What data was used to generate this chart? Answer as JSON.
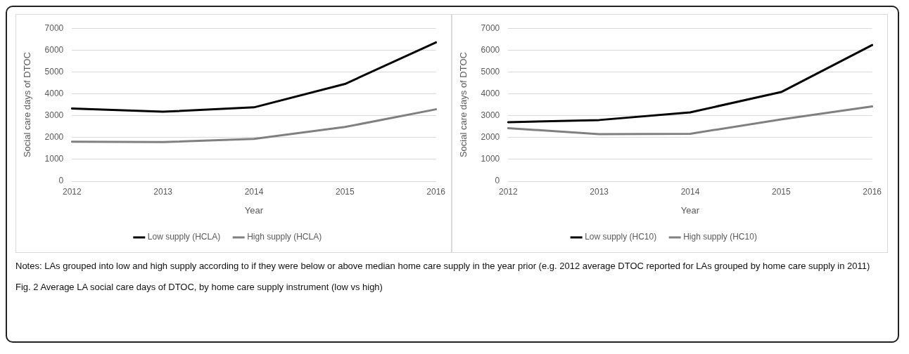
{
  "chart_data": [
    {
      "type": "line",
      "xlabel": "Year",
      "ylabel": "Social care days of DTOC",
      "categories": [
        "2012",
        "2013",
        "2014",
        "2015",
        "2016"
      ],
      "series": [
        {
          "name": "Low supply (HCLA)",
          "color": "#000000",
          "values": [
            3330,
            3180,
            3380,
            4450,
            6350
          ]
        },
        {
          "name": "High supply (HCLA)",
          "color": "#808080",
          "values": [
            1810,
            1790,
            1940,
            2480,
            3290
          ]
        }
      ],
      "ylim": [
        0,
        7000
      ],
      "yticks": [
        0,
        1000,
        2000,
        3000,
        4000,
        5000,
        6000,
        7000
      ],
      "grid": "y",
      "legend": "bottom",
      "marker": "none",
      "line_style": "solid"
    },
    {
      "type": "line",
      "xlabel": "Year",
      "ylabel": "Social care days of DTOC",
      "categories": [
        "2012",
        "2013",
        "2014",
        "2015",
        "2016"
      ],
      "series": [
        {
          "name": "Low supply (HC10)",
          "color": "#000000",
          "values": [
            2700,
            2800,
            3150,
            4080,
            6230
          ]
        },
        {
          "name": "High supply (HC10)",
          "color": "#808080",
          "values": [
            2430,
            2150,
            2170,
            2830,
            3420
          ]
        }
      ],
      "ylim": [
        0,
        7000
      ],
      "yticks": [
        0,
        1000,
        2000,
        3000,
        4000,
        5000,
        6000,
        7000
      ],
      "grid": "y",
      "legend": "bottom",
      "marker": "none",
      "line_style": "solid",
      "annotations": [
        "Notes: LAs grouped into low and high supply according to if they were below or above median home care supply in the year prior (e.g. 2012 average DTOC reported for LAs grouped by home care supply in 2011)",
        "Fig. 2 Average LA social care days of DTOC, by home care supply instrument (low vs high)"
      ]
    }
  ]
}
